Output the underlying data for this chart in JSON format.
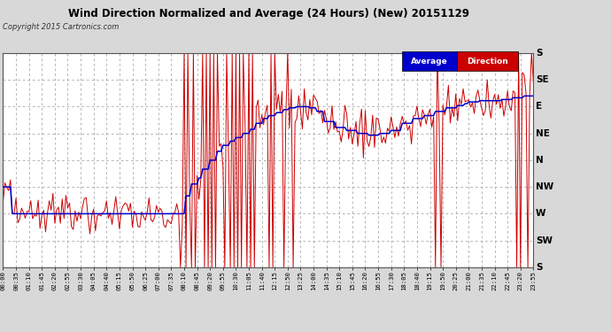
{
  "title": "Wind Direction Normalized and Average (24 Hours) (New) 20151129",
  "copyright": "Copyright 2015 Cartronics.com",
  "background_color": "#d8d8d8",
  "plot_bg_color": "#ffffff",
  "grid_color": "#999999",
  "ytick_labels": [
    "S",
    "SE",
    "E",
    "NE",
    "N",
    "NW",
    "W",
    "SW",
    "S"
  ],
  "ytick_values": [
    0,
    45,
    90,
    135,
    180,
    225,
    270,
    315,
    360
  ],
  "legend_avg_color": "#0000cc",
  "legend_dir_color": "#cc0000"
}
